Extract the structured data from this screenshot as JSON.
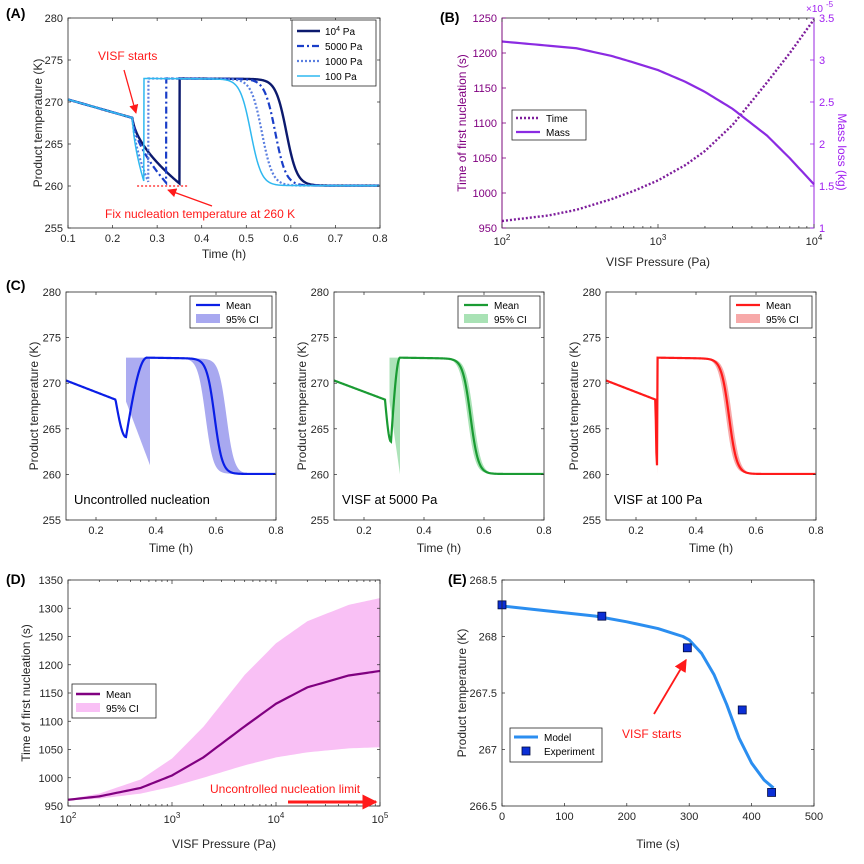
{
  "figure": {
    "colors": {
      "axis": "#262626",
      "red": "#ff1a1a",
      "purple": "#7e1e9c",
      "violet": "#a020f0"
    }
  },
  "chart_data": [
    {
      "id": "A",
      "type": "line",
      "panel_label": "(A)",
      "xlabel": "Time (h)",
      "ylabel": "Product temperature (K)",
      "xlim": [
        0.1,
        0.8
      ],
      "ylim": [
        255,
        280
      ],
      "xticks": [
        "0.1",
        "0.2",
        "0.3",
        "0.4",
        "0.5",
        "0.6",
        "0.7",
        "0.8"
      ],
      "yticks": [
        "255",
        "260",
        "265",
        "270",
        "275",
        "280"
      ],
      "legend": {
        "position": "top-right",
        "entries": [
          {
            "base": "10",
            "exp": "4",
            "unit": " Pa",
            "color": "#0c1a6e",
            "dash": "solid",
            "width": 2.6
          },
          {
            "label": "5000 Pa",
            "color": "#1a3ec8",
            "dash": "7,3,2,3",
            "width": 2.2
          },
          {
            "label": "1000 Pa",
            "color": "#5b7fe0",
            "dash": "2,2",
            "width": 2.2
          },
          {
            "label": "100 Pa",
            "color": "#2fb8f0",
            "dash": "solid",
            "width": 1.6
          }
        ]
      },
      "series": [
        {
          "name": "10^4 Pa",
          "color": "#0c1a6e",
          "dash": "solid",
          "width": 2.4,
          "curve": "freeze",
          "t_nuc": 0.35,
          "drop": 0.59,
          "temps": 0.09,
          "dip_end": 260.3
        },
        {
          "name": "5000 Pa",
          "color": "#1a3ec8",
          "dash": "7,3,2,3",
          "width": 2.2,
          "curve": "freeze",
          "t_nuc": 0.32,
          "drop": 0.565,
          "temps": 0.06,
          "dip_end": 260.4
        },
        {
          "name": "1000 Pa",
          "color": "#5b7fe0",
          "dash": "2,2",
          "width": 2.2,
          "curve": "freeze",
          "t_nuc": 0.28,
          "drop": 0.535,
          "temps": 0.02,
          "dip_end": 260.5
        },
        {
          "name": "100 Pa",
          "color": "#2fb8f0",
          "dash": "solid",
          "width": 1.5,
          "curve": "freeze",
          "t_nuc": 0.27,
          "drop": 0.51,
          "temps": 0.005,
          "dip_end": 260.6
        }
      ],
      "annotations": {
        "visf_starts": "VISF starts",
        "fix_nucleation": "Fix nucleation temperature at 260 K",
        "fix_level": 260
      }
    },
    {
      "id": "B",
      "type": "line",
      "panel_label": "(B)",
      "xlabel": "VISF Pressure (Pa)",
      "ylabel": "Time of first nucleation (s)",
      "y2label": "Mass loss (kg)",
      "xscale": "log",
      "xlim": [
        100,
        10000
      ],
      "ylim": [
        950,
        1250
      ],
      "y2lim": [
        1.0,
        3.5
      ],
      "xticks": [
        {
          "base": "10",
          "exp": "2",
          "v": 100
        },
        {
          "base": "10",
          "exp": "3",
          "v": 1000
        },
        {
          "base": "10",
          "exp": "4",
          "v": 10000
        }
      ],
      "yticks": [
        "950",
        "1000",
        "1050",
        "1100",
        "1150",
        "1200",
        "1250"
      ],
      "y2ticks": [
        "1",
        "1.5",
        "2",
        "2.5",
        "3",
        "3.5"
      ],
      "y2_exponent": {
        "base": "×10",
        "exp": "-5"
      },
      "legend": {
        "position": "center-left",
        "entries": [
          {
            "label": "Time",
            "color": "#7e1e9c",
            "dash": "2,2",
            "width": 2.4
          },
          {
            "label": "Mass",
            "color": "#8b2be2",
            "dash": "solid",
            "width": 2.2
          }
        ]
      },
      "series": [
        {
          "name": "Time",
          "x": [
            100,
            200,
            300,
            500,
            700,
            1000,
            1500,
            2000,
            3000,
            5000,
            7000,
            10000
          ],
          "y": [
            960,
            968,
            976,
            991,
            1003,
            1018,
            1040,
            1060,
            1097,
            1158,
            1200,
            1248
          ]
        },
        {
          "name": "Mass",
          "axis": "y2",
          "x": [
            100,
            200,
            300,
            500,
            700,
            1000,
            1500,
            2000,
            3000,
            5000,
            7000,
            10000
          ],
          "y": [
            3.22,
            3.17,
            3.14,
            3.05,
            2.97,
            2.88,
            2.74,
            2.62,
            2.42,
            2.1,
            1.83,
            1.52
          ]
        }
      ]
    },
    {
      "id": "C1",
      "type": "area",
      "panel_label": "(C)",
      "xlabel": "Time (h)",
      "ylabel": "Product temperature (K)",
      "xlim": [
        0.1,
        0.8
      ],
      "ylim": [
        255,
        280
      ],
      "xticks": [
        "0.2",
        "0.4",
        "0.6",
        "0.8"
      ],
      "yticks": [
        "255",
        "260",
        "265",
        "270",
        "275",
        "280"
      ],
      "color": "#0a1ee6",
      "ci_color": "#a8a8f0",
      "legend": {
        "position": "top-right",
        "entries": [
          {
            "label": "Mean"
          },
          {
            "label": "95% CI"
          }
        ]
      },
      "caption": "Uncontrolled nucleation",
      "mean": {
        "t_dip": 0.265,
        "t_min": 0.3,
        "y_min": 264.1,
        "t_peak": 0.37,
        "drop": 0.595
      },
      "ci": {
        "t0": 0.3,
        "t1": 0.38,
        "y_low": 261.0,
        "y_high": 272.8,
        "drop_lo": 0.565,
        "drop_hi": 0.635
      }
    },
    {
      "id": "C2",
      "type": "area",
      "xlabel": "Time (h)",
      "ylabel": "Product temperature (K)",
      "xlim": [
        0.1,
        0.8
      ],
      "ylim": [
        255,
        280
      ],
      "xticks": [
        "0.2",
        "0.4",
        "0.6",
        "0.8"
      ],
      "yticks": [
        "255",
        "260",
        "265",
        "270",
        "275",
        "280"
      ],
      "color": "#1a9b33",
      "ci_color": "#a9e2b5",
      "legend": {
        "position": "top-right",
        "entries": [
          {
            "label": "Mean"
          },
          {
            "label": "95% CI"
          }
        ]
      },
      "caption": "VISF at 5000 Pa",
      "mean": {
        "t_dip": 0.27,
        "t_min": 0.29,
        "y_min": 263.6,
        "t_peak": 0.32,
        "drop": 0.555
      },
      "ci": {
        "t0": 0.285,
        "t1": 0.32,
        "y_low": 260.0,
        "y_high": 272.8,
        "drop_lo": 0.545,
        "drop_hi": 0.565
      }
    },
    {
      "id": "C3",
      "type": "area",
      "xlabel": "Time (h)",
      "ylabel": "Product temperature (K)",
      "xlim": [
        0.1,
        0.8
      ],
      "ylim": [
        255,
        280
      ],
      "xticks": [
        "0.2",
        "0.4",
        "0.6",
        "0.8"
      ],
      "yticks": [
        "255",
        "260",
        "265",
        "270",
        "275",
        "280"
      ],
      "color": "#ff1a1a",
      "ci_color": "#f7a9a9",
      "legend": {
        "position": "top-right",
        "entries": [
          {
            "label": "Mean"
          },
          {
            "label": "95% CI"
          }
        ]
      },
      "caption": "VISF at 100 Pa",
      "mean": {
        "t_dip": 0.265,
        "t_min": 0.27,
        "y_min": 261.0,
        "t_peak": 0.272,
        "drop": 0.51
      },
      "ci": {
        "t0": 0.268,
        "t1": 0.272,
        "y_low": 260.0,
        "y_high": 272.8,
        "drop_lo": 0.5,
        "drop_hi": 0.52
      }
    },
    {
      "id": "D",
      "type": "area",
      "panel_label": "(D)",
      "xlabel": "VISF Pressure (Pa)",
      "ylabel": "Time of first nucleation (s)",
      "xscale": "log",
      "xlim": [
        100,
        100000
      ],
      "ylim": [
        950,
        1350
      ],
      "xticks": [
        {
          "base": "10",
          "exp": "2",
          "v": 100
        },
        {
          "base": "10",
          "exp": "3",
          "v": 1000
        },
        {
          "base": "10",
          "exp": "4",
          "v": 10000
        },
        {
          "base": "10",
          "exp": "5",
          "v": 100000
        }
      ],
      "yticks": [
        "950",
        "1000",
        "1050",
        "1100",
        "1150",
        "1200",
        "1250",
        "1300",
        "1350"
      ],
      "legend": {
        "position": "center-left",
        "entries": [
          {
            "label": "Mean",
            "color": "#800080"
          },
          {
            "label": "95% CI",
            "color": "#f9c0f5"
          }
        ]
      },
      "annotation": "Uncontrolled nucleation limit",
      "x": [
        100,
        200,
        500,
        1000,
        2000,
        5000,
        10000,
        20000,
        50000,
        100000
      ],
      "mean": [
        961,
        967,
        982,
        1004,
        1036,
        1091,
        1131,
        1160,
        1181,
        1189
      ],
      "ci_low": [
        960,
        963,
        972,
        984,
        1000,
        1022,
        1036,
        1045,
        1052,
        1054
      ],
      "ci_high": [
        962,
        972,
        997,
        1034,
        1090,
        1182,
        1238,
        1277,
        1306,
        1318
      ]
    },
    {
      "id": "E",
      "type": "line",
      "panel_label": "(E)",
      "xlabel": "Time (s)",
      "ylabel": "Product temperature (K)",
      "xlim": [
        0,
        500
      ],
      "ylim": [
        266.5,
        268.5
      ],
      "xticks": [
        "0",
        "100",
        "200",
        "300",
        "400",
        "500"
      ],
      "yticks": [
        "266.5",
        "267",
        "267.5",
        "268",
        "268.5"
      ],
      "legend": {
        "position": "bottom-left",
        "entries": [
          {
            "label": "Model",
            "color": "#2b8ef0"
          },
          {
            "label": "Experiment",
            "color": "#0b2fd6"
          }
        ]
      },
      "annotation": "VISF starts",
      "model": {
        "x": [
          0,
          50,
          100,
          150,
          200,
          250,
          290,
          300,
          320,
          340,
          360,
          380,
          400,
          420,
          435
        ],
        "y": [
          268.27,
          268.24,
          268.21,
          268.18,
          268.13,
          268.07,
          268.0,
          267.97,
          267.85,
          267.66,
          267.4,
          267.1,
          266.88,
          266.73,
          266.66
        ]
      },
      "experiment": {
        "x": [
          0,
          160,
          297,
          385,
          432
        ],
        "y": [
          268.28,
          268.18,
          267.9,
          267.35,
          266.62
        ]
      }
    }
  ]
}
